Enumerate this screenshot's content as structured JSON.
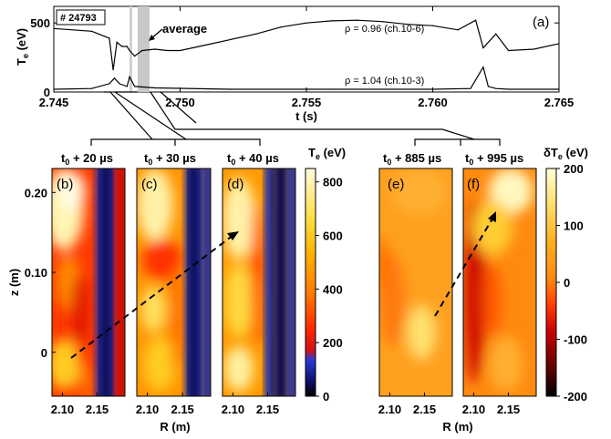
{
  "chart_data": [
    {
      "id": "a",
      "type": "line",
      "panel_label": "(a)",
      "shot_label": "# 24793",
      "xlabel": "t (s)",
      "ylabel_main": "T",
      "ylabel_sub": "e",
      "ylabel_unit": " (eV)",
      "xlim": [
        2.745,
        2.765
      ],
      "ylim": [
        0,
        620
      ],
      "xticks": [
        "2.745",
        "2.750",
        "2.755",
        "2.760",
        "2.765"
      ],
      "yticks": [
        "0",
        "500"
      ],
      "annotation": "average",
      "series": [
        {
          "name": "ρ = 0.96 (ch.10-6)",
          "x": [
            2.745,
            2.7465,
            2.7472,
            2.74735,
            2.7475,
            2.7477,
            2.7479,
            2.748,
            2.7482,
            2.7485,
            2.749,
            2.7495,
            2.75,
            2.7505,
            2.751,
            2.752,
            2.753,
            2.754,
            2.755,
            2.756,
            2.757,
            2.758,
            2.759,
            2.76,
            2.761,
            2.7617,
            2.762,
            2.7625,
            2.763,
            2.764,
            2.765
          ],
          "y": [
            460,
            440,
            390,
            160,
            360,
            330,
            330,
            300,
            260,
            300,
            310,
            300,
            300,
            320,
            340,
            380,
            420,
            470,
            500,
            515,
            520,
            510,
            490,
            480,
            450,
            520,
            320,
            420,
            300,
            310,
            350
          ]
        },
        {
          "name": "ρ = 1.04 (ch.10-3)",
          "x": [
            2.745,
            2.7465,
            2.7472,
            2.7474,
            2.7476,
            2.7479,
            2.748,
            2.7482,
            2.749,
            2.752,
            2.756,
            2.76,
            2.7615,
            2.762,
            2.7622,
            2.7625,
            2.763,
            2.765
          ],
          "y": [
            20,
            25,
            60,
            100,
            60,
            40,
            110,
            40,
            30,
            20,
            20,
            20,
            25,
            180,
            40,
            25,
            20,
            20
          ]
        }
      ]
    },
    {
      "id": "b-d",
      "type": "heatmap",
      "colorbar_title": "T",
      "colorbar_sub": "e",
      "colorbar_unit": " (eV)",
      "colorbar_ticks": [
        "0",
        "200",
        "400",
        "600",
        "800"
      ],
      "colorbar_range": [
        0,
        850
      ],
      "zlabel": "z (m)",
      "zticks": [
        "0",
        "0.10",
        "0.20"
      ],
      "zlim": [
        -0.055,
        0.23
      ],
      "xlabel": "R (m)",
      "xticks": [
        "2.10",
        "2.15"
      ],
      "rlim": [
        2.085,
        2.19
      ],
      "panels": [
        {
          "label": "(b)",
          "time_base": "t",
          "time_sub": "0",
          "time_offset": " + 20 µs"
        },
        {
          "label": "(c)",
          "time_base": "t",
          "time_sub": "0",
          "time_offset": " + 30 µs"
        },
        {
          "label": "(d)",
          "time_base": "t",
          "time_sub": "0",
          "time_offset": " + 40 µs"
        }
      ]
    },
    {
      "id": "e-f",
      "type": "heatmap",
      "colorbar_title": "δT",
      "colorbar_sub": "e",
      "colorbar_unit": " (eV)",
      "colorbar_ticks": [
        "200",
        "100",
        "0",
        "-100",
        "-200"
      ],
      "colorbar_range": [
        -200,
        200
      ],
      "xlabel": "R (m)",
      "xticks": [
        "2.10",
        "2.15"
      ],
      "panels": [
        {
          "label": "(e)",
          "time_base": "t",
          "time_sub": "0",
          "time_offset": " + 885 µs"
        },
        {
          "label": "(f)",
          "time_base": "t",
          "time_sub": "0",
          "time_offset": " + 995 µs"
        }
      ]
    }
  ],
  "colors": {
    "te_scale": [
      "#000000",
      "#1a1a8c",
      "#2a3bd6",
      "#ff1a00",
      "#ff7a00",
      "#ffd21a",
      "#fff9c4"
    ],
    "dte_scale": [
      "#000000",
      "#8b0000",
      "#ff2200",
      "#ff7a1a",
      "#ffc21a",
      "#ffffc8"
    ]
  }
}
